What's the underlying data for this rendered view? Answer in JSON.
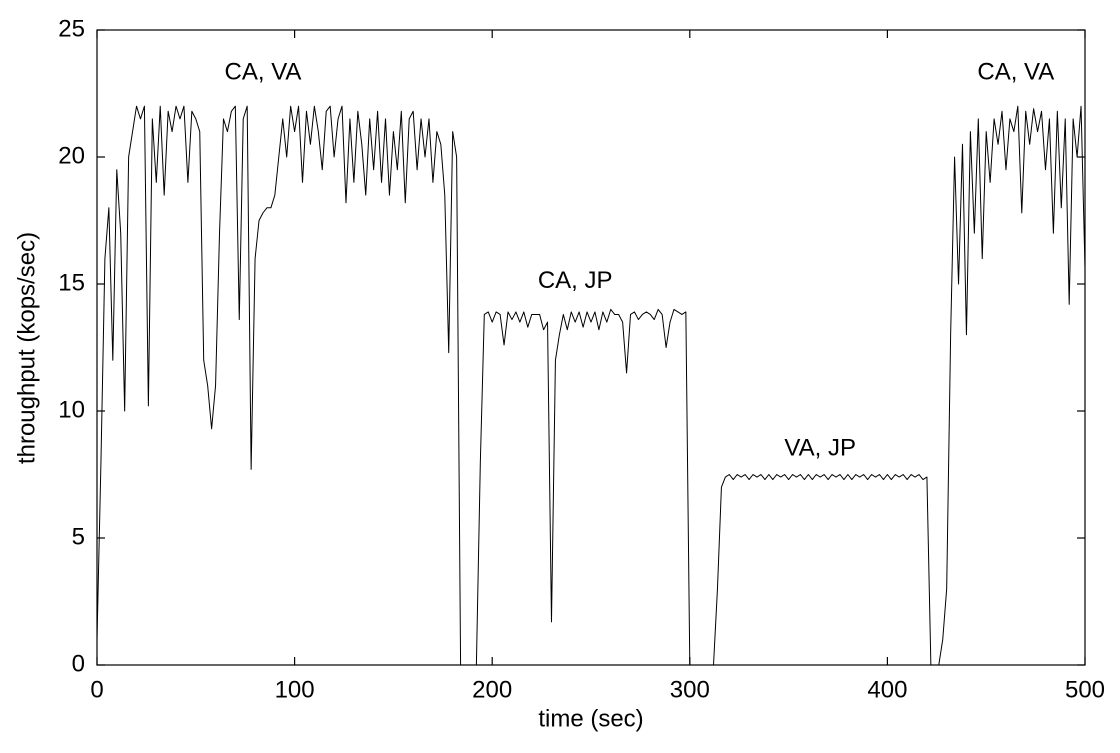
{
  "chart_data": {
    "type": "line",
    "xlabel": "time (sec)",
    "ylabel": "throughput (kops/sec)",
    "xlim": [
      0,
      500
    ],
    "xticks": [
      0,
      100,
      200,
      300,
      400,
      500
    ],
    "ylim": [
      0,
      25
    ],
    "yticks": [
      0,
      5,
      10,
      15,
      20,
      25
    ],
    "annotations": [
      {
        "text": "CA, VA",
        "x": 84,
        "y": 23.3
      },
      {
        "text": "CA, JP",
        "x": 242,
        "y": 15.1
      },
      {
        "text": "VA, JP",
        "x": 366,
        "y": 8.5
      },
      {
        "text": "CA, VA",
        "x": 465,
        "y": 23.3
      }
    ],
    "x": [
      0,
      2,
      4,
      6,
      8,
      10,
      12,
      14,
      16,
      18,
      20,
      22,
      24,
      26,
      28,
      30,
      32,
      34,
      36,
      38,
      40,
      42,
      44,
      46,
      48,
      50,
      52,
      54,
      56,
      58,
      60,
      62,
      64,
      66,
      68,
      70,
      72,
      74,
      76,
      78,
      80,
      82,
      84,
      86,
      88,
      90,
      92,
      94,
      96,
      98,
      100,
      102,
      104,
      106,
      108,
      110,
      112,
      114,
      116,
      118,
      120,
      122,
      124,
      126,
      128,
      130,
      132,
      134,
      136,
      138,
      140,
      142,
      144,
      146,
      148,
      150,
      152,
      154,
      156,
      158,
      160,
      162,
      164,
      166,
      168,
      170,
      172,
      174,
      176,
      178,
      180,
      182,
      184,
      186,
      188,
      190,
      192,
      194,
      196,
      198,
      200,
      202,
      204,
      206,
      208,
      210,
      212,
      214,
      216,
      218,
      220,
      222,
      224,
      226,
      228,
      230,
      232,
      234,
      236,
      238,
      240,
      242,
      244,
      246,
      248,
      250,
      252,
      254,
      256,
      258,
      260,
      262,
      264,
      266,
      268,
      270,
      272,
      274,
      276,
      278,
      280,
      282,
      284,
      286,
      288,
      290,
      292,
      294,
      296,
      298,
      300,
      302,
      304,
      306,
      308,
      310,
      312,
      314,
      316,
      318,
      320,
      322,
      324,
      326,
      328,
      330,
      332,
      334,
      336,
      338,
      340,
      342,
      344,
      346,
      348,
      350,
      352,
      354,
      356,
      358,
      360,
      362,
      364,
      366,
      368,
      370,
      372,
      374,
      376,
      378,
      380,
      382,
      384,
      386,
      388,
      390,
      392,
      394,
      396,
      398,
      400,
      402,
      404,
      406,
      408,
      410,
      412,
      414,
      416,
      418,
      420,
      422,
      424,
      426,
      428,
      430,
      432,
      434,
      436,
      438,
      440,
      442,
      444,
      446,
      448,
      450,
      452,
      454,
      456,
      458,
      460,
      462,
      464,
      466,
      468,
      470,
      472,
      474,
      476,
      478,
      480,
      482,
      484,
      486,
      488,
      490,
      492,
      494,
      496,
      498,
      500
    ],
    "series": [
      {
        "name": "throughput",
        "color": "#000000",
        "values": [
          1,
          8,
          16,
          18,
          12,
          19.5,
          17,
          10,
          20,
          21,
          22,
          21.5,
          22,
          10.2,
          21.5,
          19,
          22,
          18.5,
          21.8,
          21,
          22,
          21.5,
          22,
          19,
          21.8,
          21.5,
          21,
          12,
          11,
          9.3,
          11,
          17,
          21.5,
          21,
          21.8,
          22,
          13.6,
          21.5,
          22,
          7.7,
          16,
          17.5,
          17.8,
          18,
          18,
          18.5,
          20,
          21.5,
          20,
          22,
          21,
          22,
          19,
          21.8,
          20.5,
          22,
          21,
          19.5,
          21.8,
          22,
          20,
          21.5,
          22,
          18.2,
          21.5,
          19,
          21.8,
          20.5,
          18.5,
          21.5,
          19.5,
          21.8,
          19,
          21.5,
          18.5,
          21,
          19.5,
          21.8,
          18.2,
          21.5,
          21.8,
          19.5,
          21.5,
          20,
          21.5,
          19,
          21,
          20.5,
          18.5,
          12.3,
          21,
          20,
          0,
          0,
          0,
          0,
          0,
          8,
          13.8,
          13.9,
          13.5,
          13.9,
          13.8,
          12.6,
          13.9,
          13.6,
          13.9,
          13.5,
          13.9,
          13.3,
          13.8,
          13.8,
          13.8,
          13.2,
          13.5,
          1.7,
          12,
          13,
          13.8,
          13.2,
          13.9,
          13.5,
          13.9,
          13.3,
          13.9,
          13.5,
          13.9,
          13.2,
          13.9,
          13.5,
          14,
          13.8,
          13.8,
          13.5,
          11.5,
          13.8,
          13.9,
          13.6,
          13.8,
          13.9,
          13.8,
          13.6,
          14,
          13.8,
          12.5,
          13.5,
          14,
          13.9,
          13.8,
          13.9,
          0,
          0,
          0,
          0,
          0,
          0,
          0,
          3,
          7,
          7.4,
          7.5,
          7.3,
          7.5,
          7.4,
          7.5,
          7.3,
          7.5,
          7.4,
          7.5,
          7.3,
          7.5,
          7.3,
          7.5,
          7.4,
          7.5,
          7.3,
          7.5,
          7.4,
          7.5,
          7.3,
          7.5,
          7.3,
          7.5,
          7.4,
          7.5,
          7.3,
          7.5,
          7.4,
          7.5,
          7.3,
          7.5,
          7.3,
          7.5,
          7.4,
          7.5,
          7.3,
          7.5,
          7.4,
          7.5,
          7.3,
          7.5,
          7.3,
          7.5,
          7.4,
          7.5,
          7.3,
          7.5,
          7.4,
          7.5,
          7.3,
          7.4,
          0,
          0,
          0,
          1,
          3,
          13,
          20,
          15,
          20.5,
          13,
          21,
          17,
          21.5,
          16,
          21,
          19,
          21.5,
          20.5,
          21.8,
          19.5,
          21.5,
          21,
          22,
          17.8,
          21.8,
          20.5,
          21.9,
          21,
          21.8,
          19.5,
          21.5,
          17,
          21.8,
          18,
          21.5,
          14.2,
          21.5,
          20,
          22,
          15.6
        ]
      }
    ]
  }
}
